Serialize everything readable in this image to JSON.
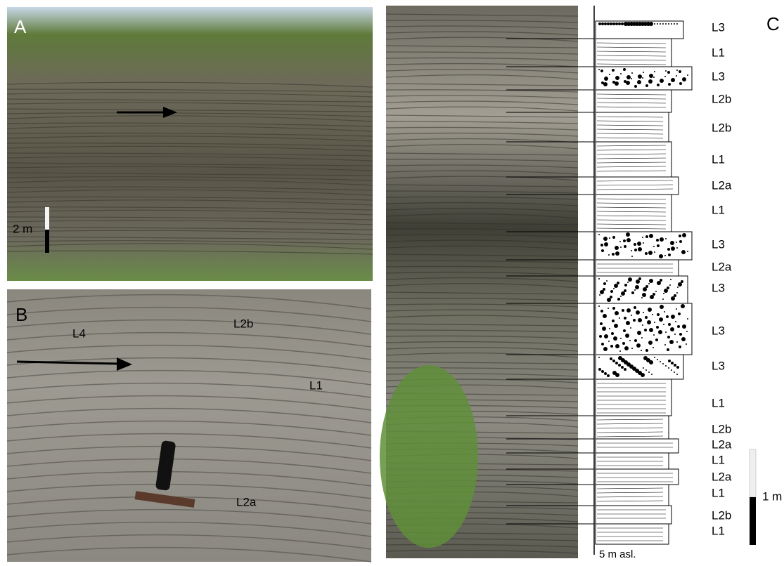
{
  "panels": {
    "a": {
      "letter": "A",
      "scale": "2 m"
    },
    "b": {
      "letter": "B",
      "labels": [
        "L4",
        "L2b",
        "L1",
        "L2a"
      ]
    },
    "c": {
      "letter": "C",
      "units": [
        "L3",
        "L1",
        "L3",
        "L2b",
        "L2b",
        "L1",
        "L2a",
        "L1",
        "L3",
        "L2a",
        "L3",
        "L3",
        "L3",
        "L1",
        "L2b",
        "L2a",
        "L1",
        "L2a",
        "L1",
        "L2b",
        "L1"
      ],
      "scale": "1 m",
      "base": "5 m asl."
    }
  }
}
